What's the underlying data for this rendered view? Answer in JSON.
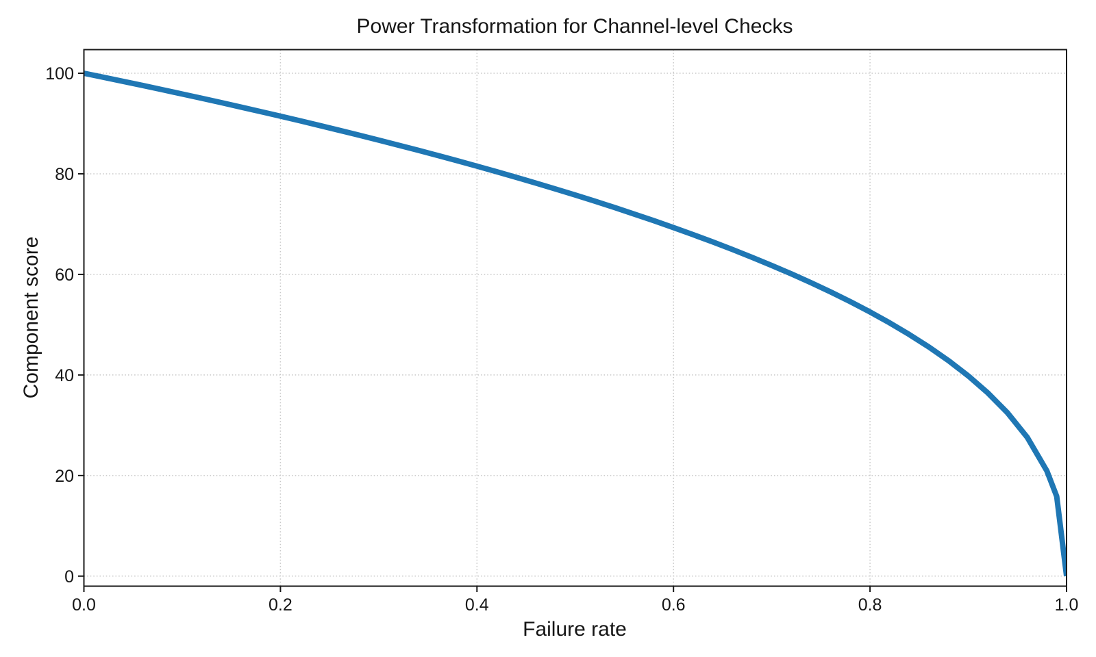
{
  "figure": {
    "background": "#ffffff"
  },
  "colors": {
    "line": "#1f77b4",
    "grid": "#c8c8c8",
    "spine": "#1a1a1a",
    "text": "#161616",
    "background": "#ffffff"
  },
  "chart_data": {
    "type": "line",
    "title": "Power Transformation for Channel-level Checks",
    "xlabel": "Failure rate",
    "ylabel": "Component score",
    "xlim": [
      0.0,
      1.0
    ],
    "ylim": [
      -2.0,
      104.7
    ],
    "grid": {
      "visible": true,
      "style": "dotted",
      "color": "#c8c8c8"
    },
    "legend": {
      "position": "none"
    },
    "xticks": {
      "values": [
        0.0,
        0.2,
        0.4,
        0.6,
        0.8,
        1.0
      ],
      "labels": [
        "0.0",
        "0.2",
        "0.4",
        "0.6",
        "0.8",
        "1.0"
      ]
    },
    "yticks": {
      "values": [
        0,
        20,
        40,
        60,
        80,
        100
      ],
      "labels": [
        "0",
        "20",
        "40",
        "60",
        "80",
        "100"
      ]
    },
    "series": [
      {
        "name": "component-score-vs-failure-rate",
        "relation": "y = 100 * (1 - x)^0.4",
        "color": "#1f77b4",
        "x": [
          0.0,
          0.02,
          0.04,
          0.06,
          0.08,
          0.1,
          0.12,
          0.14,
          0.16,
          0.18,
          0.2,
          0.22,
          0.24,
          0.26,
          0.28,
          0.3,
          0.32,
          0.34,
          0.36,
          0.38,
          0.4,
          0.42,
          0.44,
          0.46,
          0.48,
          0.5,
          0.52,
          0.54,
          0.56,
          0.58,
          0.6,
          0.62,
          0.64,
          0.66,
          0.68,
          0.7,
          0.72,
          0.74,
          0.76,
          0.78,
          0.8,
          0.82,
          0.84,
          0.86,
          0.88,
          0.9,
          0.92,
          0.94,
          0.96,
          0.98,
          0.99,
          1.0
        ],
        "y": [
          100.0,
          99.2,
          98.38,
          97.56,
          96.72,
          95.87,
          95.02,
          94.15,
          93.26,
          92.37,
          91.46,
          90.54,
          89.6,
          88.65,
          87.69,
          86.7,
          85.7,
          84.69,
          83.65,
          82.6,
          81.52,
          80.42,
          79.3,
          78.15,
          76.98,
          75.79,
          74.56,
          73.3,
          72.0,
          70.68,
          69.31,
          67.9,
          66.45,
          64.95,
          63.39,
          61.77,
          60.1,
          58.34,
          56.5,
          54.57,
          52.53,
          50.36,
          48.04,
          45.55,
          42.83,
          39.81,
          36.41,
          32.45,
          27.6,
          20.91,
          15.85,
          0.0
        ]
      }
    ]
  }
}
